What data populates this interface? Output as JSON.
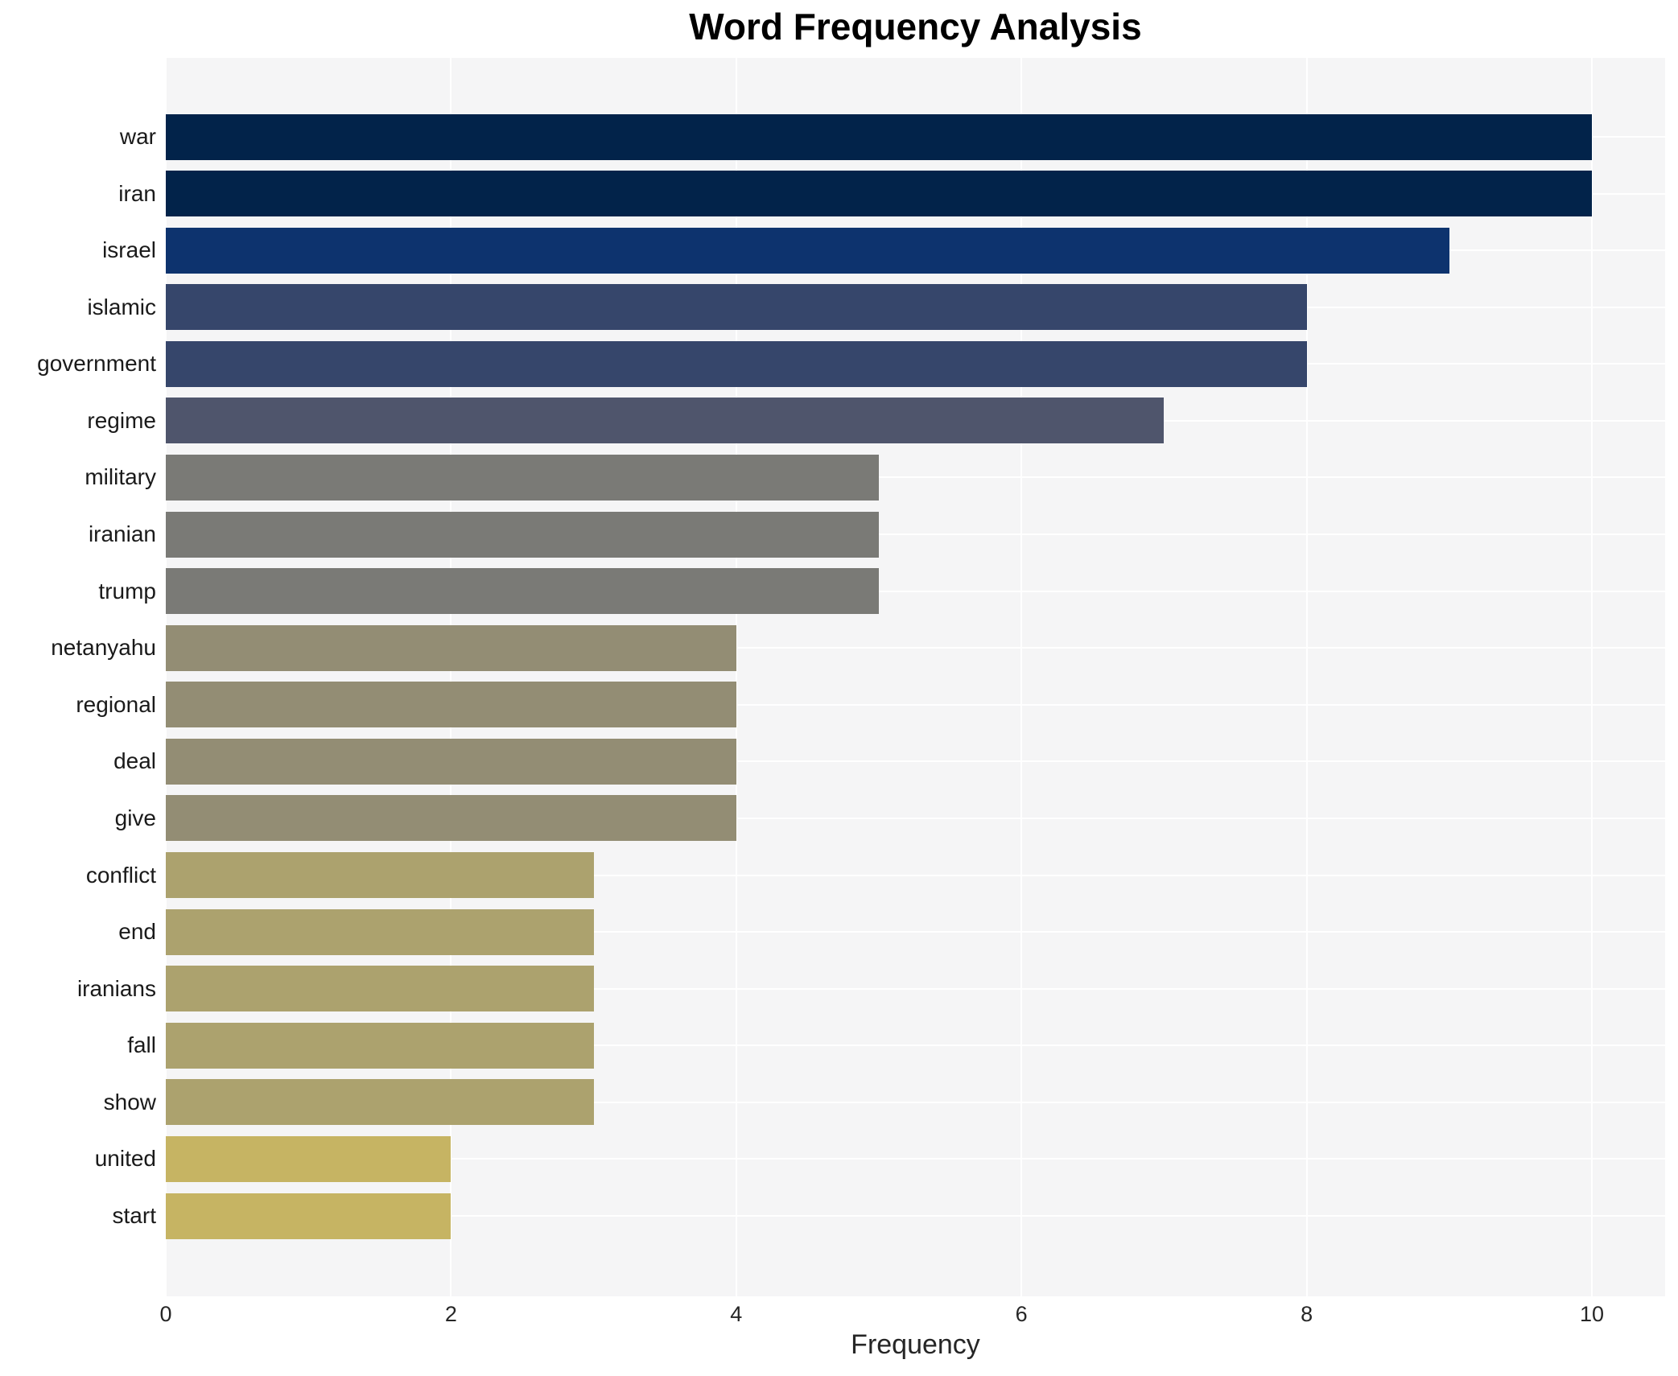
{
  "chart_data": {
    "type": "bar",
    "orientation": "horizontal",
    "title": "Word Frequency Analysis",
    "xlabel": "Frequency",
    "ylabel": "",
    "categories": [
      "war",
      "iran",
      "israel",
      "islamic",
      "government",
      "regime",
      "military",
      "iranian",
      "trump",
      "netanyahu",
      "regional",
      "deal",
      "give",
      "conflict",
      "end",
      "iranians",
      "fall",
      "show",
      "united",
      "start"
    ],
    "values": [
      10,
      10,
      9,
      8,
      8,
      7,
      5,
      5,
      5,
      4,
      4,
      4,
      4,
      3,
      3,
      3,
      3,
      3,
      2,
      2
    ],
    "bar_colors": [
      "#02234a",
      "#02234a",
      "#0d336e",
      "#36466b",
      "#36466b",
      "#4f556c",
      "#7a7a76",
      "#7a7a76",
      "#7a7a76",
      "#938d74",
      "#938d74",
      "#938d74",
      "#938d74",
      "#aca26e",
      "#aca26e",
      "#aca26e",
      "#aca26e",
      "#aca26e",
      "#c6b463",
      "#c6b463"
    ],
    "xlim": [
      0,
      10.5
    ],
    "xticks": [
      0,
      2,
      4,
      6,
      8,
      10
    ],
    "grid": true,
    "legend": "none",
    "plot_background": "#f5f5f6",
    "grid_color": "#ffffff",
    "title_color": "#000000",
    "tick_color": "#262626",
    "label_color": "#1a1a1a"
  }
}
